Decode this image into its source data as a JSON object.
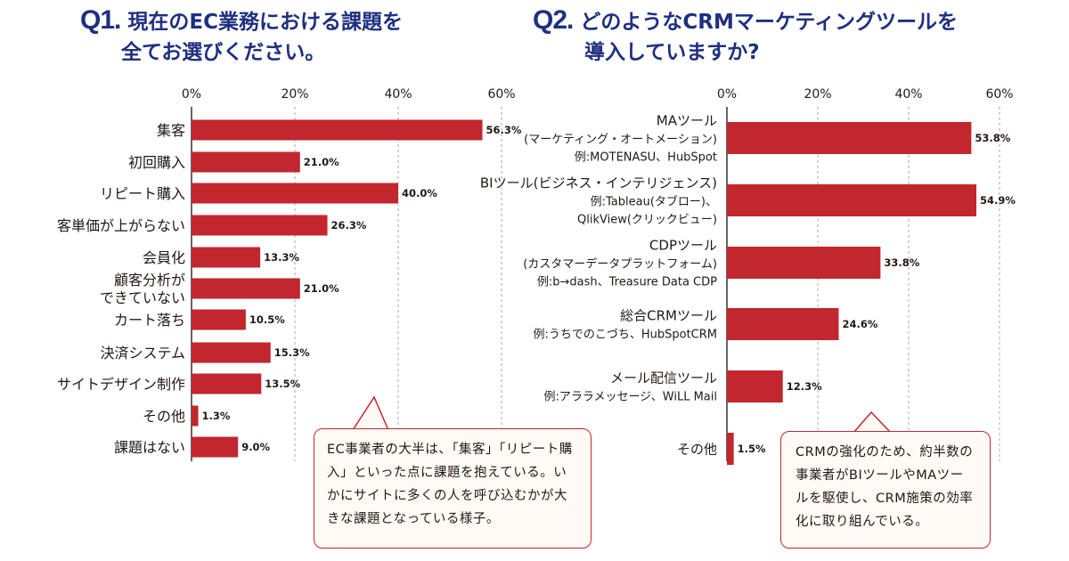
{
  "q1": {
    "title_num": "Q1.",
    "title_line1": "現在のEC業務における課題を",
    "title_line2": "全てお選びください。",
    "callout": "EC事業者の大半は、「集客」「リピート購入」といった点に課題を抱えている。いかにサイトに多くの人を呼び込むかが大きな課題となっている様子。"
  },
  "q2": {
    "title_num": "Q2.",
    "title_line1": "どのようなCRMマーケティングツールを",
    "title_line2": "導入していますか?",
    "callout": "CRMの強化のため、約半数の事業者がBIツールやMAツールを駆使し、CRM施策の効率化に取り組んでいる。"
  },
  "colors": {
    "bar": "#c1272d",
    "title": "#1f2f80",
    "grid": "#aaaaaa"
  },
  "chart_data": [
    {
      "type": "bar",
      "orientation": "horizontal",
      "xlim": [
        0,
        60
      ],
      "x_ticks": [
        "0%",
        "20%",
        "40%",
        "60%"
      ],
      "grid": "vertical dashed",
      "categories": [
        [
          "集客"
        ],
        [
          "初回購入"
        ],
        [
          "リピート購入"
        ],
        [
          "客単価が上がらない"
        ],
        [
          "会員化"
        ],
        [
          "顧客分析が",
          "できていない"
        ],
        [
          "カート落ち"
        ],
        [
          "決済システム"
        ],
        [
          "サイトデザイン制作"
        ],
        [
          "その他"
        ],
        [
          "課題はない"
        ]
      ],
      "values": [
        56.3,
        21.0,
        40.0,
        26.3,
        13.3,
        21.0,
        10.5,
        15.3,
        13.5,
        1.3,
        9.0
      ],
      "value_labels": [
        "56.3%",
        "21.0%",
        "40.0%",
        "26.3%",
        "13.3%",
        "21.0%",
        "10.5%",
        "15.3%",
        "13.5%",
        "1.3%",
        "9.0%"
      ]
    },
    {
      "type": "bar",
      "orientation": "horizontal",
      "xlim": [
        0,
        60
      ],
      "x_ticks": [
        "0%",
        "20%",
        "40%",
        "60%"
      ],
      "grid": "vertical dashed",
      "categories": [
        [
          "MAツール",
          "(マーケティング・オートメーション)",
          "例:MOTENASU、HubSpot"
        ],
        [
          "BIツール(ビジネス・インテリジェンス)",
          "例:Tableau(タブロー)、",
          "QlikView(クリックビュー)"
        ],
        [
          "CDPツール",
          "(カスタマーデータプラットフォーム)",
          "例:b→dash、Treasure Data CDP"
        ],
        [
          "総合CRMツール",
          "例:うちでのこづち、HubSpotCRM"
        ],
        [
          "メール配信ツール",
          "例:アララメッセージ、WiLL Mail"
        ],
        [
          "その他"
        ]
      ],
      "values": [
        53.8,
        54.9,
        33.8,
        24.6,
        12.3,
        1.5
      ],
      "value_labels": [
        "53.8%",
        "54.9%",
        "33.8%",
        "24.6%",
        "12.3%",
        "1.5%"
      ]
    }
  ]
}
